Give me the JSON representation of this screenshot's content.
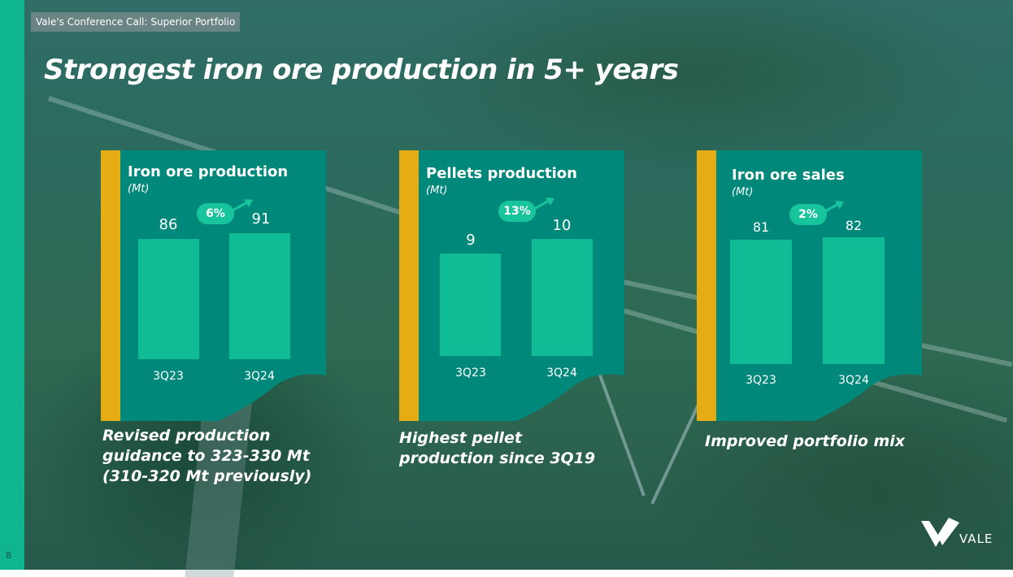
{
  "header": {
    "tag": "Vale's Conference Call: Superior Portfolio",
    "page_number": "8"
  },
  "title": "Strongest iron ore production in 5+ years",
  "colors": {
    "accent_teal": "#0fb58f",
    "panel_teal": "#00897b",
    "bar": "#10bc95",
    "yellow": "#e6ac14"
  },
  "chart_data": [
    {
      "type": "bar",
      "title": "Iron ore production",
      "ylabel": "(Mt)",
      "categories": [
        "3Q23",
        "3Q24"
      ],
      "values": [
        86,
        91
      ],
      "change_label": "6%"
    },
    {
      "type": "bar",
      "title": "Pellets production",
      "ylabel": "(Mt)",
      "categories": [
        "3Q23",
        "3Q24"
      ],
      "values": [
        9,
        10
      ],
      "change_label": "13%"
    },
    {
      "type": "bar",
      "title": "Iron ore sales",
      "ylabel": "(Mt)",
      "categories": [
        "3Q23",
        "3Q24"
      ],
      "values": [
        81,
        82
      ],
      "change_label": "2%"
    }
  ],
  "captions": [
    "Revised production guidance to 323-330 Mt (310-320 Mt previously)",
    "Highest pellet production since 3Q19",
    "Improved portfolio mix"
  ],
  "logo": {
    "text": "VALE",
    "icon": "vale-v-logo-icon"
  }
}
